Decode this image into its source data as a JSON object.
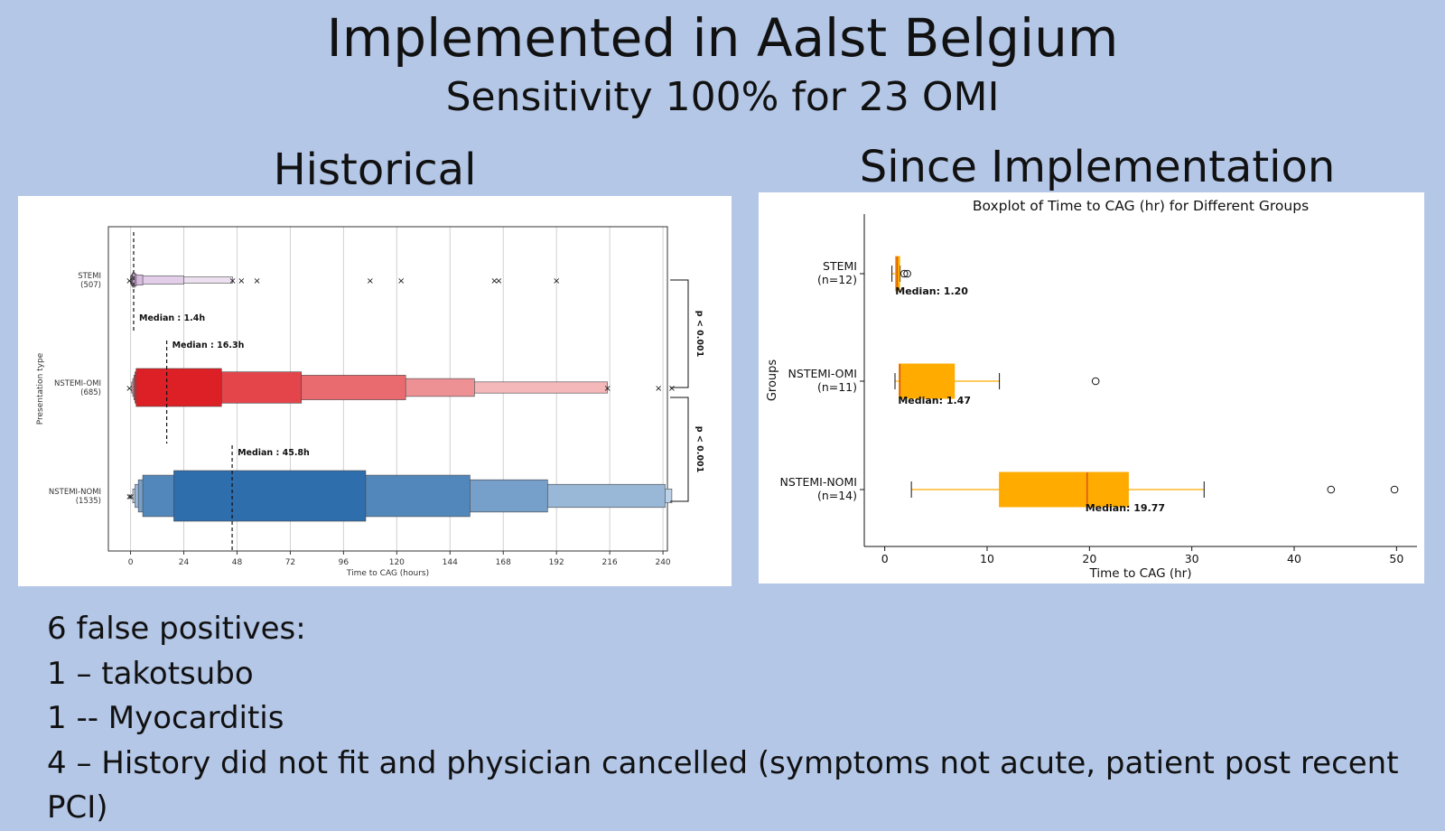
{
  "slide": {
    "title": "Implemented in Aalst Belgium",
    "subtitle": "Sensitivity 100% for 23 OMI",
    "left_heading": "Historical",
    "right_heading": "Since Implementation",
    "bullets": [
      "6 false positives:",
      "1 – takotsubo",
      "1 -- Myocarditis",
      "4 – History did not fit and physician cancelled (symptoms not acute, patient post recent PCI)"
    ]
  },
  "chart_data": [
    {
      "type": "boxen",
      "title": "",
      "xlabel": "Time to CAG (hours)",
      "ylabel": "Presentation type",
      "xlim": [
        -10,
        242
      ],
      "xticks": [
        0,
        24,
        48,
        72,
        96,
        120,
        144,
        168,
        192,
        216,
        240
      ],
      "grid": "vertical",
      "groups": [
        {
          "name": "STEMI",
          "n_label": "(507)",
          "color": "#c49ad0",
          "median": 1.4,
          "median_label": "Median : 1.4h",
          "boxes": [
            [
              0.9,
              1.9
            ],
            [
              0.6,
              2.6
            ],
            [
              0.3,
              5.5
            ],
            [
              0,
              24
            ],
            [
              0,
              46
            ]
          ],
          "outliers": [
            -0.5,
            46,
            50,
            57,
            108,
            122,
            164,
            166,
            192
          ]
        },
        {
          "name": "NSTEMI-OMI",
          "n_label": "(685)",
          "color": "#dd1f26",
          "median": 16.3,
          "median_label": "Median : 16.3h",
          "boxes": [
            [
              2.5,
              41
            ],
            [
              2,
              77
            ],
            [
              1.5,
              124
            ],
            [
              1,
              155
            ],
            [
              0.5,
              215
            ]
          ],
          "outliers": [
            -0.5,
            215,
            238,
            244
          ]
        },
        {
          "name": "NSTEMI-NOMI",
          "n_label": "(1535)",
          "color": "#2f6ead",
          "median": 45.8,
          "median_label": "Median : 45.8h",
          "boxes": [
            [
              19.5,
              106
            ],
            [
              5.5,
              153
            ],
            [
              3.5,
              188
            ],
            [
              2,
              241
            ],
            [
              1,
              244
            ]
          ],
          "outliers": [
            -0.5,
            0.2
          ]
        }
      ],
      "brackets": [
        {
          "label": "p < 0.001",
          "between": [
            "STEMI",
            "NSTEMI-OMI"
          ]
        },
        {
          "label": "p < 0.001",
          "between": [
            "NSTEMI-OMI",
            "NSTEMI-NOMI"
          ]
        }
      ]
    },
    {
      "type": "box",
      "title": "Boxplot of Time to CAG (hr) for Different Groups",
      "xlabel": "Time to CAG (hr)",
      "ylabel": "Groups",
      "xlim": [
        -2,
        52
      ],
      "xticks": [
        0,
        10,
        20,
        30,
        40,
        50
      ],
      "box_color": "#ffab00",
      "median_color": "#d9541e",
      "groups": [
        {
          "name": "STEMI",
          "n_label": "(n=12)",
          "whisker_low": 0.7,
          "q1": 1.05,
          "median": 1.2,
          "q3": 1.45,
          "whisker_high": 1.5,
          "outliers": [
            1.9,
            2.2
          ],
          "median_label": "Median: 1.20"
        },
        {
          "name": "NSTEMI-OMI",
          "n_label": "(n=11)",
          "whisker_low": 1.0,
          "q1": 1.4,
          "median": 1.47,
          "q3": 6.8,
          "whisker_high": 11.2,
          "outliers": [
            20.6
          ],
          "median_label": "Median: 1.47"
        },
        {
          "name": "NSTEMI-NOMI",
          "n_label": "(n=14)",
          "whisker_low": 2.6,
          "q1": 11.2,
          "median": 19.77,
          "q3": 23.8,
          "whisker_high": 31.2,
          "outliers": [
            43.6,
            49.8
          ],
          "median_label": "Median: 19.77"
        }
      ]
    }
  ]
}
